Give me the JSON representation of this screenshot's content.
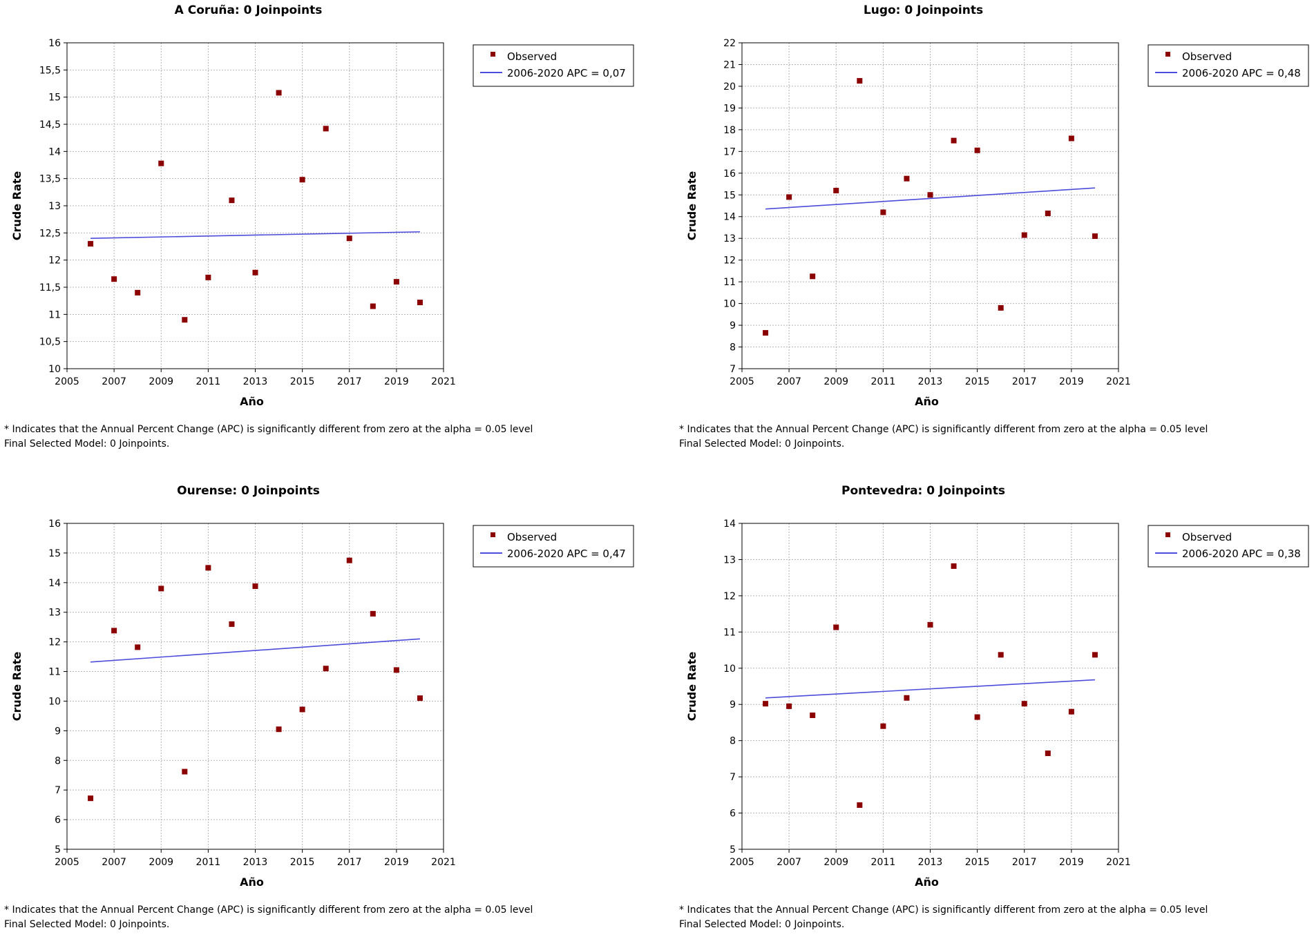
{
  "footnote": "* Indicates that the Annual Percent Change (APC) is significantly different from zero at the alpha = 0.05 level",
  "charts": [
    {
      "footer": "Final Selected Model: 0 Joinpoints.",
      "apc_label": "2006-2020 APC  = 0,07"
    },
    {
      "footer": "Final Selected Model: 0 Joinpoints.",
      "apc_label": "2006-2020 APC  = 0,48"
    },
    {
      "footer": "Final Selected Model: 0 Joinpoints.",
      "apc_label": "2006-2020 APC  = 0,47"
    },
    {
      "footer": "Final Selected Model: 0 Joinpoints.",
      "apc_label": "2006-2020 APC  = 0,38"
    }
  ],
  "colors": {
    "observed": "#8b0000",
    "trend": "#4b4bdc",
    "grid": "#b4b4b4"
  },
  "chart_data": [
    {
      "type": "scatter",
      "title": "A Coruña: 0 Joinpoints",
      "xlabel": "Año",
      "ylabel": "Crude Rate",
      "xlim": [
        2005,
        2021
      ],
      "ylim": [
        10,
        16
      ],
      "xticks": [
        2005,
        2007,
        2009,
        2011,
        2013,
        2015,
        2017,
        2019,
        2021
      ],
      "xtick_labels": [
        "2005",
        "2007",
        "2009",
        "2011",
        "2013",
        "2015",
        "2017",
        "2019",
        "2021"
      ],
      "yticks": [
        10,
        10.5,
        11,
        11.5,
        12,
        12.5,
        13,
        13.5,
        14,
        14.5,
        15,
        15.5,
        16
      ],
      "ytick_labels": [
        "10",
        "10,5",
        "11",
        "11,5",
        "12",
        "12,5",
        "13",
        "13,5",
        "14",
        "14,5",
        "15",
        "15,5",
        "16"
      ],
      "x": [
        2006,
        2007,
        2008,
        2009,
        2010,
        2011,
        2012,
        2013,
        2014,
        2015,
        2016,
        2017,
        2018,
        2019,
        2020
      ],
      "observed": [
        12.3,
        11.65,
        11.4,
        13.78,
        10.9,
        11.68,
        13.1,
        11.77,
        15.08,
        13.48,
        14.42,
        12.4,
        11.15,
        11.6,
        11.22
      ],
      "trend": {
        "x": [
          2006,
          2020
        ],
        "y": [
          12.4,
          12.52
        ]
      },
      "legend": {
        "observed": "Observed",
        "trend": "2006-2020 APC  = 0,07"
      }
    },
    {
      "type": "scatter",
      "title": "Lugo: 0 Joinpoints",
      "xlabel": "Año",
      "ylabel": "Crude Rate",
      "xlim": [
        2005,
        2021
      ],
      "ylim": [
        7,
        22
      ],
      "xticks": [
        2005,
        2007,
        2009,
        2011,
        2013,
        2015,
        2017,
        2019,
        2021
      ],
      "xtick_labels": [
        "2005",
        "2007",
        "2009",
        "2011",
        "2013",
        "2015",
        "2017",
        "2019",
        "2021"
      ],
      "yticks": [
        7,
        8,
        9,
        10,
        11,
        12,
        13,
        14,
        15,
        16,
        17,
        18,
        19,
        20,
        21,
        22
      ],
      "ytick_labels": [
        "7",
        "8",
        "9",
        "10",
        "11",
        "12",
        "13",
        "14",
        "15",
        "16",
        "17",
        "18",
        "19",
        "20",
        "21",
        "22"
      ],
      "x": [
        2006,
        2007,
        2008,
        2009,
        2010,
        2011,
        2012,
        2013,
        2014,
        2015,
        2016,
        2017,
        2018,
        2019,
        2020
      ],
      "observed": [
        8.65,
        14.9,
        11.25,
        15.2,
        20.25,
        14.2,
        15.75,
        15.0,
        17.5,
        17.05,
        9.8,
        13.15,
        14.15,
        17.6,
        13.1
      ],
      "trend": {
        "x": [
          2006,
          2020
        ],
        "y": [
          14.35,
          15.32
        ]
      },
      "legend": {
        "observed": "Observed",
        "trend": "2006-2020 APC  = 0,48"
      }
    },
    {
      "type": "scatter",
      "title": "Ourense: 0 Joinpoints",
      "xlabel": "Año",
      "ylabel": "Crude Rate",
      "xlim": [
        2005,
        2021
      ],
      "ylim": [
        5,
        16
      ],
      "xticks": [
        2005,
        2007,
        2009,
        2011,
        2013,
        2015,
        2017,
        2019,
        2021
      ],
      "xtick_labels": [
        "2005",
        "2007",
        "2009",
        "2011",
        "2013",
        "2015",
        "2017",
        "2019",
        "2021"
      ],
      "yticks": [
        5,
        6,
        7,
        8,
        9,
        10,
        11,
        12,
        13,
        14,
        15,
        16
      ],
      "ytick_labels": [
        "5",
        "6",
        "7",
        "8",
        "9",
        "10",
        "11",
        "12",
        "13",
        "14",
        "15",
        "16"
      ],
      "x": [
        2006,
        2007,
        2008,
        2009,
        2010,
        2011,
        2012,
        2013,
        2014,
        2015,
        2016,
        2017,
        2018,
        2019,
        2020
      ],
      "observed": [
        6.72,
        12.38,
        11.82,
        13.8,
        7.62,
        14.5,
        12.6,
        13.88,
        9.05,
        9.72,
        11.1,
        14.75,
        12.95,
        11.05,
        10.1
      ],
      "trend": {
        "x": [
          2006,
          2020
        ],
        "y": [
          11.32,
          12.1
        ]
      },
      "legend": {
        "observed": "Observed",
        "trend": "2006-2020 APC  = 0,47"
      }
    },
    {
      "type": "scatter",
      "title": "Pontevedra: 0 Joinpoints",
      "xlabel": "Año",
      "ylabel": "Crude Rate",
      "xlim": [
        2005,
        2021
      ],
      "ylim": [
        5,
        14
      ],
      "xticks": [
        2005,
        2007,
        2009,
        2011,
        2013,
        2015,
        2017,
        2019,
        2021
      ],
      "xtick_labels": [
        "2005",
        "2007",
        "2009",
        "2011",
        "2013",
        "2015",
        "2017",
        "2019",
        "2021"
      ],
      "yticks": [
        5,
        6,
        7,
        8,
        9,
        10,
        11,
        12,
        13,
        14
      ],
      "ytick_labels": [
        "5",
        "6",
        "7",
        "8",
        "9",
        "10",
        "11",
        "12",
        "13",
        "14"
      ],
      "x": [
        2006,
        2007,
        2008,
        2009,
        2010,
        2011,
        2012,
        2013,
        2014,
        2015,
        2016,
        2017,
        2018,
        2019,
        2020
      ],
      "observed": [
        9.02,
        8.95,
        8.7,
        11.13,
        6.22,
        8.4,
        9.18,
        11.2,
        12.82,
        8.65,
        10.37,
        9.02,
        7.65,
        8.8,
        10.37
      ],
      "trend": {
        "x": [
          2006,
          2020
        ],
        "y": [
          9.18,
          9.68
        ]
      },
      "legend": {
        "observed": "Observed",
        "trend": "2006-2020 APC  = 0,38"
      }
    }
  ]
}
